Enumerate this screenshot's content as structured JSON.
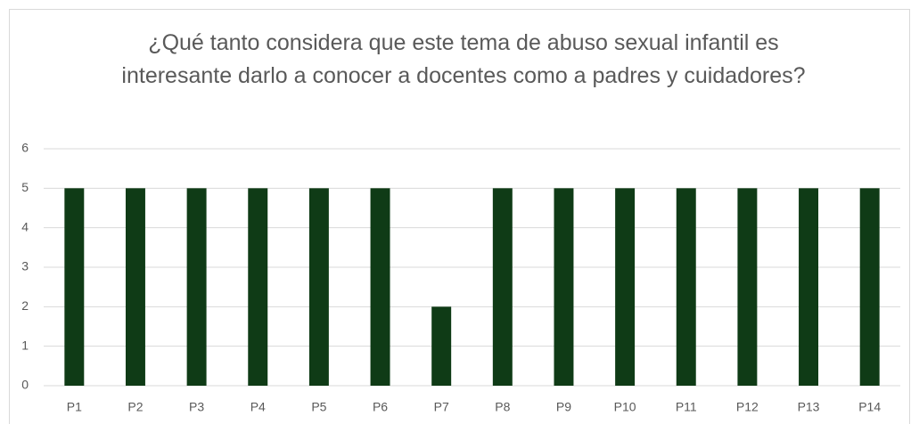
{
  "chart_data": {
    "type": "bar",
    "title": "¿Qué tanto considera que este tema de abuso sexual infantil es interesante darlo a conocer a docentes como a padres y cuidadores?",
    "categories": [
      "P1",
      "P2",
      "P3",
      "P4",
      "P5",
      "P6",
      "P7",
      "P8",
      "P9",
      "P10",
      "P11",
      "P12",
      "P13",
      "P14"
    ],
    "values": [
      5,
      5,
      5,
      5,
      5,
      5,
      2,
      5,
      5,
      5,
      5,
      5,
      5,
      5
    ],
    "color": "#0f3b16",
    "ylim": [
      0,
      6
    ],
    "yticks": [
      0,
      1,
      2,
      3,
      4,
      5,
      6
    ],
    "grid": true
  }
}
